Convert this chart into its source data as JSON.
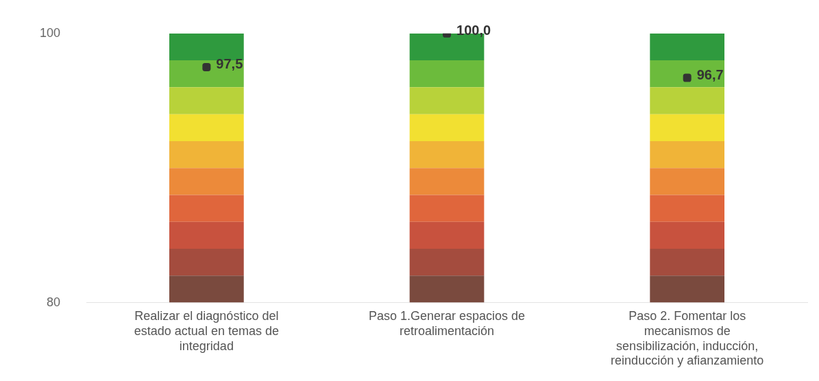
{
  "chart_data": {
    "type": "bar",
    "categories": [
      "Realizar el diagnóstico del estado actual en temas de integridad",
      "Paso 1.Generar espacios de retroalimentación",
      "Paso 2. Fomentar los mecanismos de sensibilización, inducción, reinducción y afianzamiento"
    ],
    "series": [
      {
        "color": "#7a4a3e",
        "base": [
          80,
          80,
          80
        ],
        "values": [
          2,
          2,
          2
        ]
      },
      {
        "color": "#a44c3e",
        "base": [
          82,
          82,
          82
        ],
        "values": [
          2,
          2,
          2
        ]
      },
      {
        "color": "#c8523e",
        "base": [
          84,
          84,
          84
        ],
        "values": [
          2,
          2,
          2
        ]
      },
      {
        "color": "#e0663c",
        "base": [
          86,
          86,
          86
        ],
        "values": [
          2,
          2,
          2
        ]
      },
      {
        "color": "#ec8a3a",
        "base": [
          88,
          88,
          88
        ],
        "values": [
          2,
          2,
          2
        ]
      },
      {
        "color": "#f0b438",
        "base": [
          90,
          90,
          90
        ],
        "values": [
          2,
          2,
          2
        ]
      },
      {
        "color": "#f2e031",
        "base": [
          92,
          92,
          92
        ],
        "values": [
          2,
          2,
          2
        ]
      },
      {
        "color": "#b8d23a",
        "base": [
          94,
          94,
          94
        ],
        "values": [
          2,
          2,
          2
        ]
      },
      {
        "color": "#6cbb3c",
        "base": [
          96,
          96,
          96
        ],
        "values": [
          2,
          2,
          2
        ]
      },
      {
        "color": "#2f9a3e",
        "base": [
          98,
          98,
          98
        ],
        "values": [
          2,
          2,
          2
        ]
      },
      {
        "type": "scatter",
        "color": "#333333",
        "values": [
          97.5,
          100,
          96.7
        ],
        "value_labels": [
          "97,5",
          "100,0",
          "96,7"
        ]
      }
    ],
    "ylim": [
      80,
      100
    ],
    "yticks": [
      80,
      100
    ],
    "grid": false,
    "legend": false
  }
}
